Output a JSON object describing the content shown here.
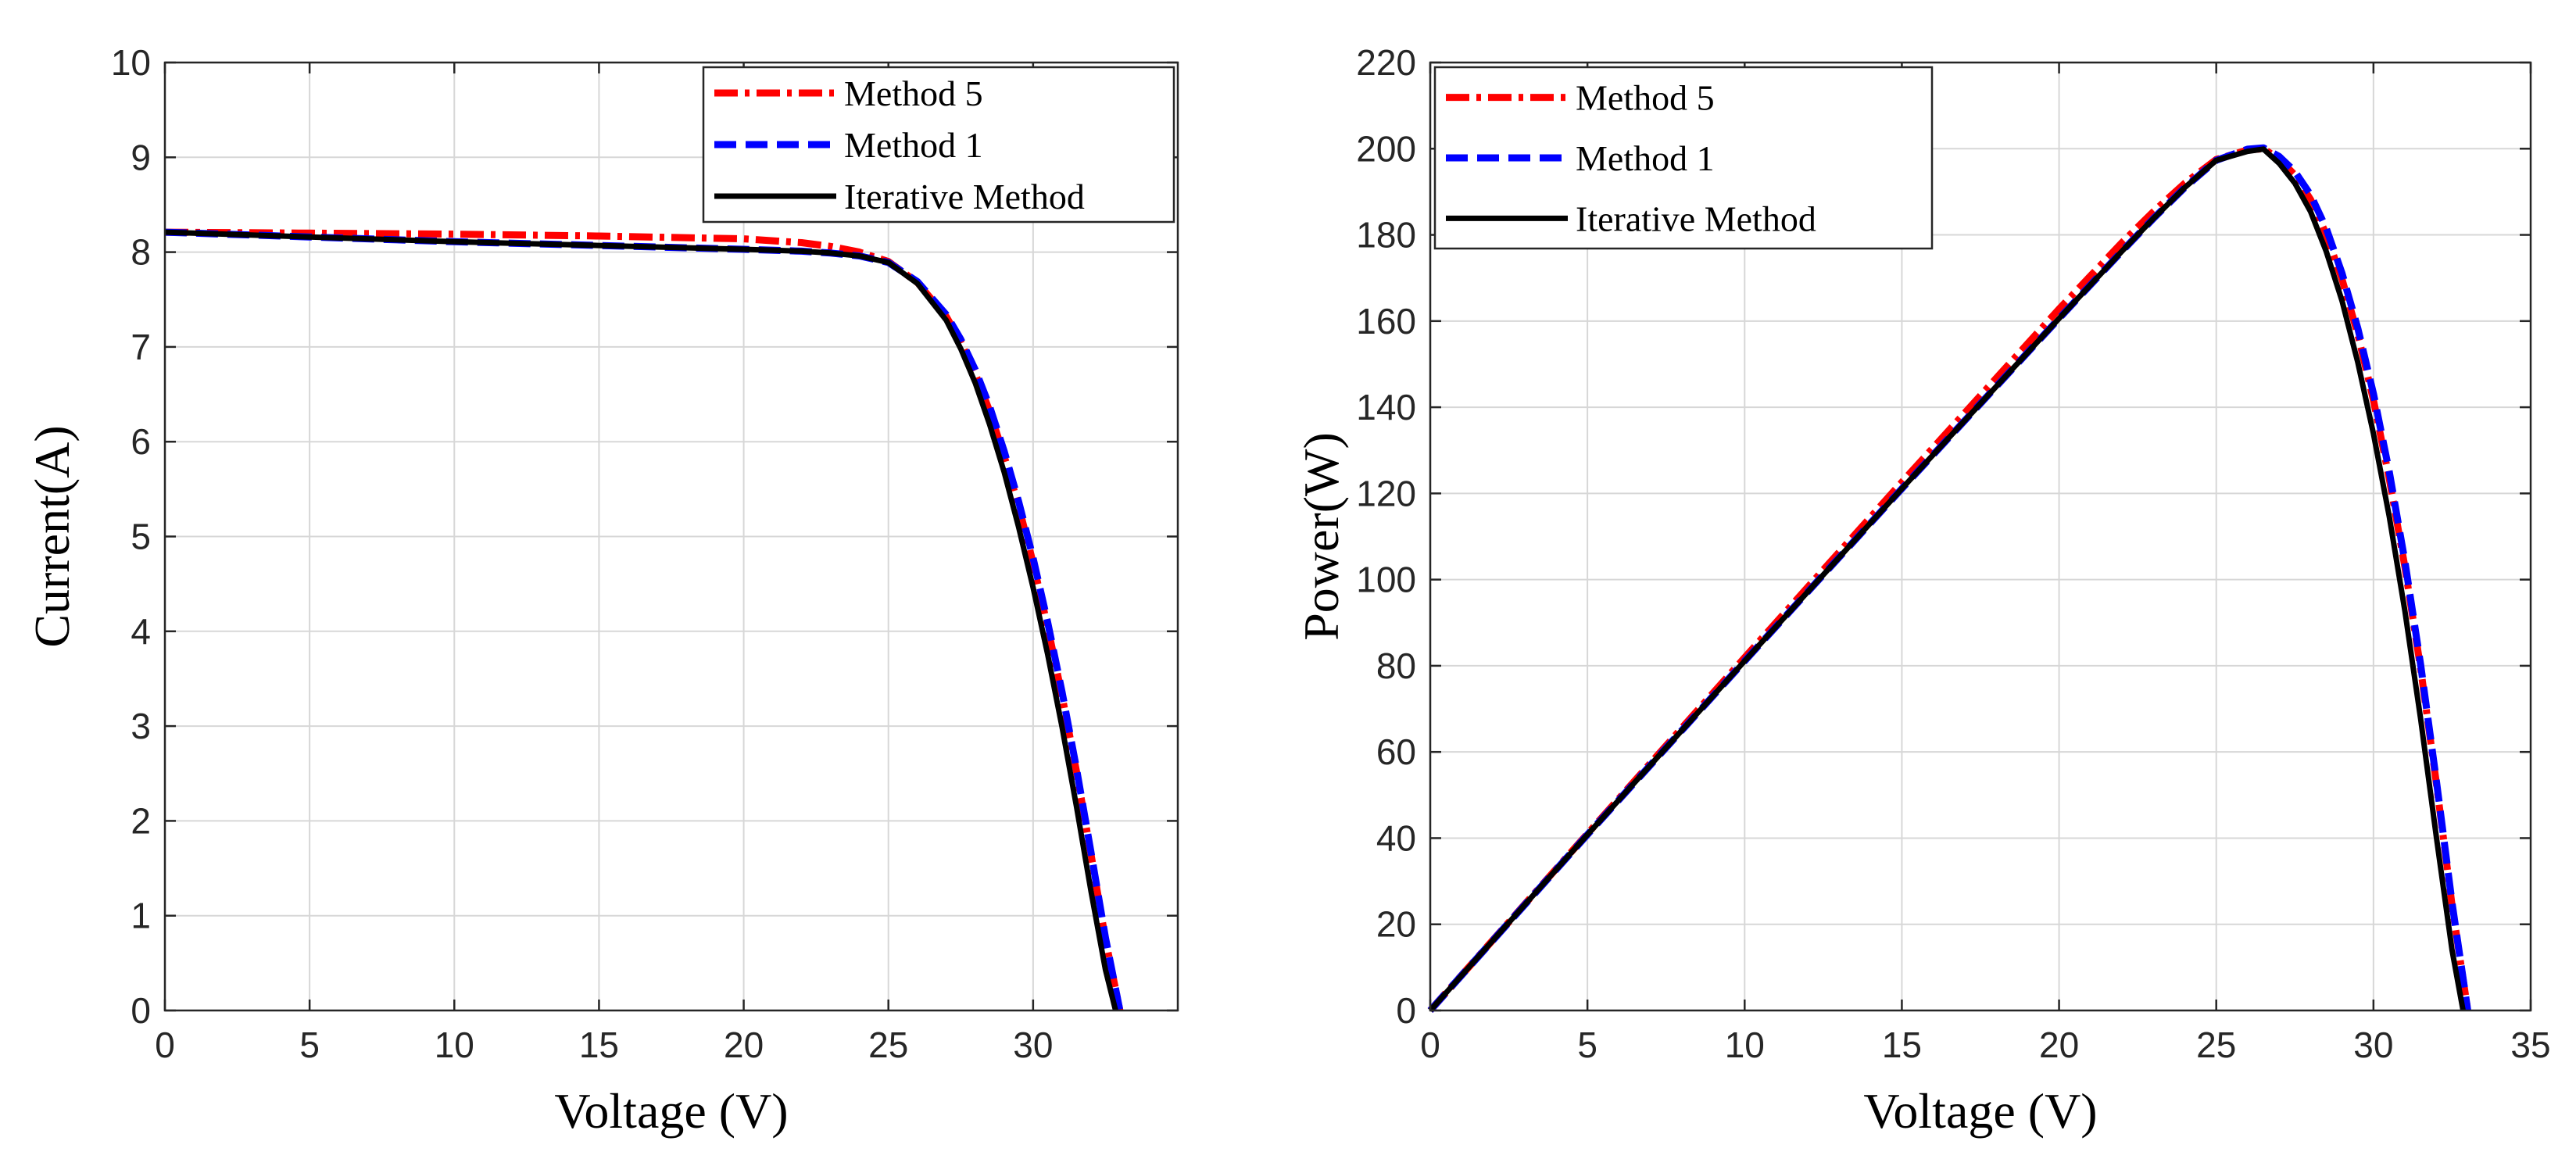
{
  "chart_data": [
    {
      "type": "line",
      "title": "",
      "xlabel": "Voltage (V)",
      "ylabel": "Current(A)",
      "xlim": [
        0,
        35
      ],
      "ylim": [
        0,
        10
      ],
      "x_ticks": [
        0,
        5,
        10,
        15,
        20,
        25,
        30
      ],
      "y_ticks": [
        0,
        1,
        2,
        3,
        4,
        5,
        6,
        7,
        8,
        9,
        10
      ],
      "grid": true,
      "legend": "top-right",
      "series": [
        {
          "name": "Method 5",
          "color": "#ff0000",
          "style": "dash-dot",
          "x": [
            0,
            5,
            10,
            15,
            20,
            22,
            23,
            24,
            25,
            26,
            27,
            27.5,
            28,
            28.5,
            29,
            29.5,
            30,
            30.5,
            31,
            31.5,
            32,
            32.5,
            33
          ],
          "y": [
            8.21,
            8.2,
            8.19,
            8.17,
            8.14,
            8.1,
            8.06,
            8.0,
            7.9,
            7.68,
            7.32,
            7.05,
            6.72,
            6.32,
            5.85,
            5.32,
            4.72,
            4.05,
            3.32,
            2.52,
            1.65,
            0.75,
            0
          ]
        },
        {
          "name": "Method 1",
          "color": "#0000ff",
          "style": "dashed",
          "x": [
            0,
            5,
            10,
            15,
            20,
            22,
            23,
            24,
            25,
            26,
            27,
            27.5,
            28,
            28.5,
            29,
            29.5,
            30,
            30.5,
            31,
            31.5,
            32,
            32.5,
            33
          ],
          "y": [
            8.21,
            8.16,
            8.11,
            8.07,
            8.03,
            8.01,
            7.99,
            7.96,
            7.89,
            7.69,
            7.34,
            7.08,
            6.76,
            6.37,
            5.9,
            5.37,
            4.77,
            4.1,
            3.36,
            2.55,
            1.67,
            0.77,
            0
          ]
        },
        {
          "name": "Iterative Method",
          "color": "#000000",
          "style": "solid",
          "x": [
            0,
            5,
            10,
            15,
            20,
            22,
            23,
            24,
            25,
            26,
            27,
            27.5,
            28,
            28.5,
            29,
            29.5,
            30,
            30.5,
            31,
            31.5,
            32,
            32.5,
            32.85
          ],
          "y": [
            8.21,
            8.16,
            8.11,
            8.07,
            8.03,
            8.01,
            7.99,
            7.96,
            7.89,
            7.67,
            7.28,
            6.98,
            6.62,
            6.18,
            5.68,
            5.1,
            4.46,
            3.76,
            2.99,
            2.15,
            1.26,
            0.43,
            0
          ]
        }
      ]
    },
    {
      "type": "line",
      "title": "",
      "xlabel": "Voltage (V)",
      "ylabel": "Power(W)",
      "xlim": [
        0,
        35
      ],
      "ylim": [
        0,
        220
      ],
      "x_ticks": [
        0,
        5,
        10,
        15,
        20,
        25,
        30,
        35
      ],
      "y_ticks": [
        0,
        20,
        40,
        60,
        80,
        100,
        120,
        140,
        160,
        180,
        200,
        220
      ],
      "grid": true,
      "legend": "top-left",
      "series": [
        {
          "name": "Method 5",
          "color": "#ff0000",
          "style": "dash-dot",
          "x": [
            0,
            5,
            10,
            15,
            20,
            22,
            23,
            24,
            25,
            26,
            26.5,
            27,
            27.5,
            28,
            28.5,
            29,
            29.5,
            30,
            30.5,
            31,
            31.5,
            32,
            32.5,
            33
          ],
          "y": [
            0,
            41,
            81.9,
            122.6,
            162.8,
            178.2,
            185.4,
            192,
            197.5,
            199.7,
            200,
            197.6,
            193.9,
            188.2,
            180.1,
            169.7,
            157,
            141.6,
            123.5,
            102.9,
            79.4,
            52.8,
            24.4,
            0
          ]
        },
        {
          "name": "Method 1",
          "color": "#0000ff",
          "style": "dashed",
          "x": [
            0,
            5,
            10,
            15,
            20,
            22,
            23,
            24,
            25,
            26,
            26.5,
            27,
            27.5,
            28,
            28.5,
            29,
            29.5,
            30,
            30.5,
            31,
            31.5,
            32,
            32.5,
            33
          ],
          "y": [
            0,
            40.8,
            81.1,
            121.1,
            160.6,
            176.2,
            183.8,
            191,
            197.3,
            199.9,
            200.2,
            198.2,
            194.7,
            189.3,
            181.5,
            171.1,
            158.4,
            143.1,
            125.1,
            104.2,
            80.3,
            53.4,
            25,
            0
          ]
        },
        {
          "name": "Iterative Method",
          "color": "#000000",
          "style": "solid",
          "x": [
            0,
            5,
            10,
            15,
            20,
            22,
            23,
            24,
            25,
            26,
            26.5,
            27,
            27.5,
            28,
            28.5,
            29,
            29.5,
            30,
            30.5,
            31,
            31.5,
            32,
            32.5,
            32.85
          ],
          "y": [
            0,
            40.8,
            81.1,
            121.1,
            160.6,
            176.2,
            183.8,
            191,
            197.3,
            199.4,
            199.9,
            196.6,
            192,
            185.4,
            176.1,
            164.7,
            150.5,
            133.8,
            114.7,
            92.7,
            67.7,
            40.3,
            14,
            0
          ]
        }
      ]
    }
  ]
}
